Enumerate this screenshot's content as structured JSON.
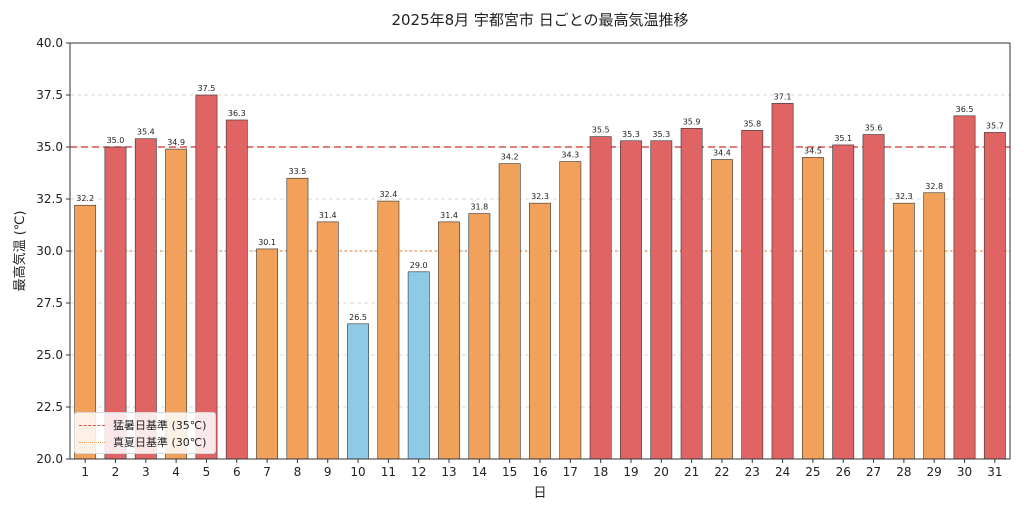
{
  "chart_data": {
    "type": "bar",
    "title": "2025年8月 宇都宮市 日ごとの最高気温推移",
    "xlabel": "日",
    "ylabel": "最高気温 (℃)",
    "ylim": [
      20.0,
      40.0
    ],
    "yticks": [
      "20.0",
      "22.5",
      "25.0",
      "27.5",
      "30.0",
      "32.5",
      "35.0",
      "37.5",
      "40.0"
    ],
    "categories": [
      "1",
      "2",
      "3",
      "4",
      "5",
      "6",
      "7",
      "8",
      "9",
      "10",
      "11",
      "12",
      "13",
      "14",
      "15",
      "16",
      "17",
      "18",
      "19",
      "20",
      "21",
      "22",
      "23",
      "24",
      "25",
      "26",
      "27",
      "28",
      "29",
      "30",
      "31"
    ],
    "values": [
      32.2,
      35.0,
      35.4,
      34.9,
      37.5,
      36.3,
      30.1,
      33.5,
      31.4,
      26.5,
      32.4,
      29.0,
      31.4,
      31.8,
      34.2,
      32.3,
      34.3,
      35.5,
      35.3,
      35.3,
      35.9,
      34.4,
      35.8,
      37.1,
      34.5,
      35.1,
      35.6,
      32.3,
      32.8,
      36.5,
      35.7
    ],
    "data_labels": [
      "32.2",
      "35.0",
      "35.4",
      "34.9",
      "37.5",
      "36.3",
      "30.1",
      "33.5",
      "31.4",
      "26.5",
      "32.4",
      "29.0",
      "31.4",
      "31.8",
      "34.2",
      "32.3",
      "34.3",
      "35.5",
      "35.3",
      "35.3",
      "35.9",
      "34.4",
      "35.8",
      "37.1",
      "34.5",
      "35.1",
      "35.6",
      "32.3",
      "32.8",
      "36.5",
      "35.7"
    ],
    "colors": {
      "hot": "#e06464",
      "warm": "#f2a15a",
      "cool": "#8ecae6",
      "edge": "#333333"
    },
    "reference_lines": [
      {
        "label": "猛暑日基準 (35℃)",
        "value": 35.0,
        "style": "dashed",
        "color": "#d9534f"
      },
      {
        "label": "真夏日基準 (30℃)",
        "value": 30.0,
        "style": "dotted",
        "color": "#f2a15a"
      }
    ],
    "grid": true,
    "legend_position": "lower-left"
  }
}
